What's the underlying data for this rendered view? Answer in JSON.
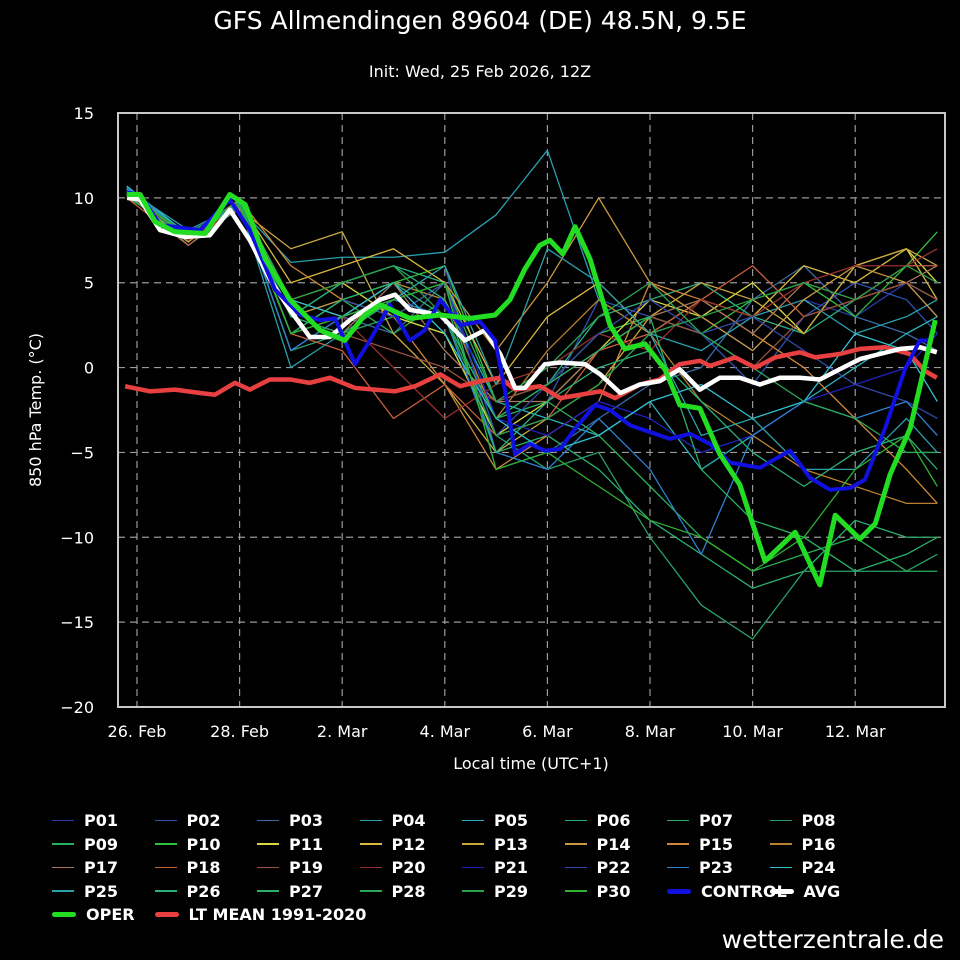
{
  "chart_data": {
    "type": "line",
    "title": "GFS Allmendingen 89604 (DE) 48.5N, 9.5E",
    "subtitle": "Init: Wed, 25 Feb 2026, 12Z",
    "xlabel": "Local time (UTC+1)",
    "ylabel": "850 hPa Temp. (°C)",
    "x_unit": "days since 26 Feb 2026 00:00 local",
    "xlim": [
      -0.37,
      15.75
    ],
    "ylim": [
      -20,
      15
    ],
    "yticks": [
      15,
      10,
      5,
      0,
      -5,
      -10,
      -15,
      -20
    ],
    "xticks": [
      {
        "t": 0,
        "label": "26. Feb"
      },
      {
        "t": 2,
        "label": "28. Feb"
      },
      {
        "t": 4,
        "label": "2. Mar"
      },
      {
        "t": 6,
        "label": "4. Mar"
      },
      {
        "t": 8,
        "label": "6. Mar"
      },
      {
        "t": 10,
        "label": "8. Mar"
      },
      {
        "t": 12,
        "label": "10. Mar"
      },
      {
        "t": 14,
        "label": "12. Mar"
      }
    ],
    "grid": true,
    "legend_position": "bottom",
    "member_t": [
      -0.2,
      1,
      2,
      3,
      4,
      5,
      6,
      7,
      8,
      9,
      10,
      11,
      12,
      13,
      14,
      15,
      15.6
    ],
    "members": [
      {
        "name": "P01",
        "color": "#2a3aa8",
        "values": [
          10.2,
          7.8,
          9.5,
          3,
          4,
          3,
          5,
          -4,
          -3,
          -1,
          2,
          3,
          1,
          4,
          3,
          5,
          3
        ]
      },
      {
        "name": "P02",
        "color": "#3050b0",
        "values": [
          10.4,
          7.5,
          9.8,
          2,
          3,
          4,
          6,
          -5,
          -2,
          4,
          3,
          2,
          -1,
          3,
          5,
          4,
          2
        ]
      },
      {
        "name": "P03",
        "color": "#3a6aa0",
        "values": [
          10.1,
          7.9,
          9.6,
          1,
          3,
          2,
          5,
          -6,
          -5,
          -3,
          -1,
          0,
          4,
          6,
          3,
          2,
          1
        ]
      },
      {
        "name": "P04",
        "color": "#2aa0b0",
        "values": [
          10.6,
          7.2,
          9.4,
          6.2,
          6.5,
          6.5,
          6.8,
          9,
          12.8,
          4,
          2,
          1,
          3,
          4,
          2,
          3,
          4
        ]
      },
      {
        "name": "P05",
        "color": "#2ab0b8",
        "values": [
          10.3,
          7.6,
          9.7,
          2,
          4,
          5,
          4,
          -2,
          -3,
          -4,
          -2,
          -6,
          -4,
          -2,
          0,
          2,
          3
        ]
      },
      {
        "name": "P06",
        "color": "#2ab080",
        "values": [
          10.2,
          7.8,
          9.9,
          3,
          5,
          6,
          5,
          -3,
          -1,
          3,
          4,
          5,
          3,
          2,
          4,
          5,
          4
        ]
      },
      {
        "name": "P07",
        "color": "#2ab070",
        "values": [
          10.0,
          8.0,
          9.5,
          2,
          3,
          4,
          3,
          -5,
          -4,
          -6,
          -9,
          -11,
          -13,
          -12,
          -9,
          -10,
          -10
        ]
      },
      {
        "name": "P08",
        "color": "#2aa068",
        "values": [
          10.3,
          7.7,
          9.6,
          1,
          2,
          3,
          2,
          -4,
          -6,
          -5,
          -10,
          -14,
          -16,
          -12,
          -12,
          -12,
          -11
        ]
      },
      {
        "name": "P09",
        "color": "#2ab058",
        "values": [
          10.2,
          7.6,
          9.8,
          3,
          4,
          2,
          4,
          -3,
          -2,
          -4,
          -7,
          -10,
          -12,
          -11,
          -10,
          -12,
          -12
        ]
      },
      {
        "name": "P10",
        "color": "#30c040",
        "values": [
          10.1,
          7.9,
          9.6,
          2,
          4,
          5,
          6,
          -2,
          -1,
          2,
          3,
          2,
          4,
          5,
          3,
          6,
          8
        ]
      },
      {
        "name": "P11",
        "color": "#d8d840",
        "values": [
          10.3,
          7.8,
          9.5,
          4,
          5,
          3,
          2,
          -4,
          -2,
          1,
          4,
          3,
          5,
          2,
          6,
          7,
          5
        ]
      },
      {
        "name": "P12",
        "color": "#d8b840",
        "values": [
          10.2,
          7.4,
          9.7,
          5,
          6,
          7,
          5,
          -1,
          3,
          5,
          2,
          4,
          3,
          6,
          5,
          7,
          4
        ]
      },
      {
        "name": "P13",
        "color": "#c8a840",
        "values": [
          10.4,
          7.8,
          9.3,
          7,
          8,
          2,
          -1,
          -5,
          -3,
          -1,
          3,
          5,
          4,
          2,
          6,
          7,
          6
        ]
      },
      {
        "name": "P14",
        "color": "#c89840",
        "values": [
          10.2,
          7.6,
          9.5,
          3,
          4,
          3,
          5,
          1,
          5,
          10,
          5,
          3,
          1,
          4,
          6,
          5,
          3
        ]
      },
      {
        "name": "P15",
        "color": "#d08838",
        "values": [
          10.3,
          7.7,
          9.9,
          6,
          4,
          3,
          -1,
          -6,
          -4,
          -2,
          5,
          4,
          2,
          0,
          -3,
          -6,
          -8
        ]
      },
      {
        "name": "P16",
        "color": "#b88030",
        "values": [
          10.1,
          7.9,
          9.6,
          4,
          3,
          5,
          4,
          -3,
          1,
          4,
          2,
          -2,
          -4,
          -6,
          -7,
          -8,
          -8
        ]
      },
      {
        "name": "P17",
        "color": "#a87858",
        "values": [
          10.2,
          7.5,
          9.4,
          3,
          2,
          5,
          1,
          -2,
          -2,
          1,
          3,
          4,
          2,
          5,
          4,
          5,
          6
        ]
      },
      {
        "name": "P18",
        "color": "#c86040",
        "values": [
          10.0,
          7.2,
          9.6,
          2,
          1,
          -3,
          -1,
          -4,
          -3,
          1,
          2,
          4,
          6,
          3,
          4,
          6,
          6
        ]
      },
      {
        "name": "P19",
        "color": "#985040",
        "values": [
          10.2,
          7.8,
          9.7,
          3,
          2,
          1,
          0,
          -2,
          -1,
          1,
          3,
          2,
          0,
          3,
          4,
          5,
          4
        ]
      },
      {
        "name": "P20",
        "color": "#983030",
        "values": [
          10.3,
          7.5,
          9.5,
          2,
          3,
          0,
          -3,
          -1,
          0,
          2,
          1,
          4,
          3,
          5,
          6,
          6,
          7
        ]
      },
      {
        "name": "P21",
        "color": "#2020c0",
        "values": [
          10.5,
          7.9,
          9.8,
          3,
          2,
          4,
          5,
          -3,
          -4,
          -2,
          -3,
          -5,
          -4,
          -2,
          -1,
          0,
          2
        ]
      },
      {
        "name": "P22",
        "color": "#3048a8",
        "values": [
          10.4,
          7.6,
          9.6,
          2,
          4,
          3,
          5,
          -4,
          -1,
          2,
          4,
          2,
          3,
          1,
          -1,
          -2,
          -3
        ]
      },
      {
        "name": "P23",
        "color": "#3080d0",
        "values": [
          10.6,
          7.7,
          9.7,
          1,
          3,
          4,
          3,
          -5,
          -6,
          -3,
          -6,
          -11,
          -4,
          -2,
          -3,
          -2,
          -4
        ]
      },
      {
        "name": "P24",
        "color": "#30c0d0",
        "values": [
          10.7,
          7.8,
          9.8,
          4,
          3,
          5,
          2,
          -3,
          -5,
          -4,
          -2,
          -1,
          -3,
          -2,
          2,
          1,
          -2
        ]
      },
      {
        "name": "P25",
        "color": "#2aa0a8",
        "values": [
          10.5,
          8.1,
          9.6,
          0,
          2,
          4,
          6,
          -1,
          7,
          5,
          2,
          -4,
          -3,
          -6,
          -6,
          -3,
          -5
        ]
      },
      {
        "name": "P26",
        "color": "#2ab078",
        "values": [
          10.2,
          7.9,
          9.5,
          3,
          5,
          6,
          4,
          -5,
          -2,
          0,
          1,
          -2,
          -5,
          -7,
          -5,
          -4,
          -6
        ]
      },
      {
        "name": "P27",
        "color": "#2ab068",
        "values": [
          10.3,
          7.8,
          9.8,
          2,
          4,
          5,
          3,
          -3,
          -1,
          1,
          3,
          -6,
          -9,
          -10,
          -12,
          -11,
          -10
        ]
      },
      {
        "name": "P28",
        "color": "#2aa858",
        "values": [
          10.1,
          7.6,
          9.6,
          3,
          2,
          4,
          5,
          -2,
          0,
          3,
          5,
          2,
          0,
          -2,
          -3,
          -5,
          -5
        ]
      },
      {
        "name": "P29",
        "color": "#2aa048",
        "values": [
          10.2,
          7.9,
          9.7,
          4,
          5,
          6,
          3,
          -4,
          -3,
          -1,
          2,
          3,
          4,
          5,
          4,
          6,
          5
        ]
      },
      {
        "name": "P30",
        "color": "#30b030",
        "values": [
          10.3,
          7.7,
          9.5,
          2,
          3,
          4,
          5,
          -6,
          -5,
          -7,
          -9,
          -10,
          -12,
          -10,
          -6,
          -4,
          -7
        ]
      }
    ],
    "series": [
      {
        "name": "LT MEAN 1991-2020",
        "color": "#e84040",
        "width": 4.5,
        "t": [
          -0.23,
          0.25,
          0.74,
          1.23,
          1.52,
          1.91,
          2.2,
          2.59,
          2.98,
          3.37,
          3.76,
          4.25,
          4.64,
          5.03,
          5.42,
          5.91,
          6.3,
          6.69,
          7.08,
          7.37,
          7.86,
          8.25,
          8.64,
          9.03,
          9.32,
          9.8,
          10.19,
          10.58,
          10.97,
          11.17,
          11.66,
          12.05,
          12.44,
          12.92,
          13.22,
          13.7,
          14.09,
          14.58,
          15.06,
          15.36,
          15.59
        ],
        "values": [
          -1.1,
          -1.4,
          -1.3,
          -1.5,
          -1.6,
          -0.9,
          -1.3,
          -0.7,
          -0.7,
          -0.9,
          -0.6,
          -1.2,
          -1.3,
          -1.4,
          -1.1,
          -0.4,
          -1.1,
          -0.8,
          -0.6,
          -1.3,
          -1.1,
          -1.8,
          -1.6,
          -1.4,
          -1.8,
          -1.0,
          -0.7,
          0.2,
          0.4,
          0.1,
          0.6,
          0,
          0.6,
          0.9,
          0.6,
          0.8,
          1.1,
          1.2,
          0.8,
          -0.2,
          -0.6
        ]
      },
      {
        "name": "AVG",
        "color": "#ffffff",
        "width": 4.5,
        "t": [
          -0.19,
          0.06,
          0.45,
          0.94,
          1.42,
          1.81,
          2.2,
          2.59,
          2.98,
          3.37,
          3.76,
          4.15,
          4.74,
          5.03,
          5.32,
          5.91,
          6.39,
          6.78,
          7.08,
          7.37,
          7.56,
          7.95,
          8.25,
          8.73,
          9.03,
          9.42,
          9.8,
          10.19,
          10.58,
          10.97,
          11.36,
          11.75,
          12.14,
          12.53,
          12.92,
          13.31,
          13.7,
          14.09,
          14.48,
          14.87,
          15.26,
          15.59
        ],
        "values": [
          10.0,
          9.9,
          8.1,
          7.7,
          7.8,
          9.3,
          7.5,
          5.2,
          3.4,
          1.8,
          1.8,
          2.8,
          4.0,
          4.3,
          3.4,
          3.1,
          1.6,
          2.2,
          0.8,
          -1.2,
          -1.2,
          0.2,
          0.3,
          0.2,
          -0.4,
          -1.5,
          -1.0,
          -0.8,
          -0.1,
          -1.3,
          -0.6,
          -0.6,
          -1.0,
          -0.6,
          -0.6,
          -0.7,
          -0.1,
          0.5,
          0.8,
          1.1,
          1.2,
          0.9
        ]
      },
      {
        "name": "CONTROL",
        "color": "#1010e0",
        "width": 4,
        "t": [
          -0.19,
          0.06,
          0.45,
          1.23,
          1.81,
          2.2,
          2.69,
          3.18,
          3.57,
          3.86,
          4.25,
          4.54,
          4.93,
          5.32,
          5.61,
          5.91,
          6.3,
          6.69,
          6.98,
          7.17,
          7.37,
          7.66,
          7.95,
          8.25,
          8.54,
          8.93,
          9.22,
          9.61,
          10.0,
          10.39,
          10.78,
          11.17,
          11.56,
          12.14,
          12.73,
          13.12,
          13.51,
          13.9,
          14.19,
          14.58,
          14.97,
          15.26,
          15.46
        ],
        "values": [
          10.3,
          10.2,
          8.4,
          8.1,
          9.9,
          8.1,
          4.6,
          3.1,
          2.8,
          2.9,
          0.2,
          1.6,
          3.7,
          1.6,
          2.2,
          4.0,
          2.5,
          2.7,
          1.6,
          -1.3,
          -5.1,
          -4.5,
          -4.9,
          -4.8,
          -3.6,
          -2.2,
          -2.5,
          -3.4,
          -3.8,
          -4.2,
          -3.9,
          -4.5,
          -5.6,
          -5.9,
          -4.9,
          -6.5,
          -7.2,
          -7.1,
          -6.6,
          -3.6,
          -0.1,
          1.6,
          1.6
        ]
      },
      {
        "name": "OPER",
        "color": "#22dd22",
        "width": 5,
        "t": [
          -0.19,
          0.06,
          0.35,
          0.74,
          1.33,
          1.81,
          2.11,
          2.5,
          2.98,
          3.57,
          4.05,
          4.44,
          4.74,
          5.32,
          5.91,
          6.49,
          6.98,
          7.27,
          7.56,
          7.85,
          8.05,
          8.3,
          8.54,
          8.83,
          9.22,
          9.51,
          9.9,
          10.29,
          10.58,
          10.97,
          11.36,
          11.75,
          12.24,
          12.83,
          13.31,
          13.61,
          14.09,
          14.39,
          14.68,
          15.07,
          15.56
        ],
        "values": [
          10.2,
          10.2,
          8.6,
          8.0,
          7.9,
          10.2,
          9.6,
          6.4,
          4.0,
          2.2,
          1.6,
          3.1,
          3.7,
          2.9,
          3.1,
          2.9,
          3.1,
          4.0,
          5.8,
          7.2,
          7.5,
          6.7,
          8.3,
          6.4,
          2.5,
          1.1,
          1.4,
          -0.1,
          -2.2,
          -2.4,
          -5.1,
          -6.9,
          -11.4,
          -9.7,
          -12.8,
          -8.7,
          -10.1,
          -9.2,
          -6.3,
          -3.6,
          2.8
        ]
      }
    ]
  },
  "watermark": "wetterzentrale.de"
}
